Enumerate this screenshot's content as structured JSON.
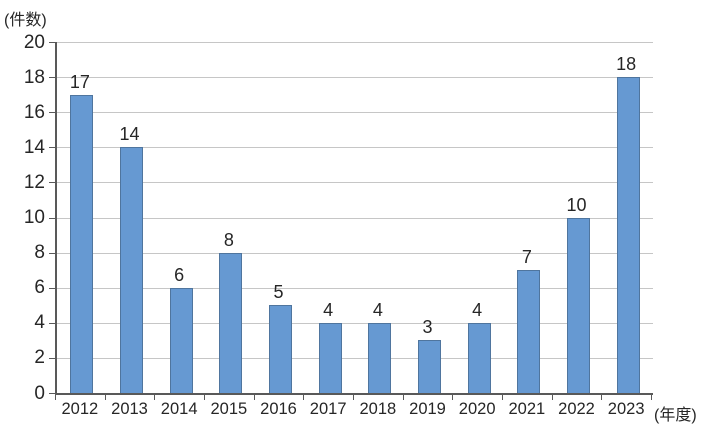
{
  "chart_data": {
    "type": "bar",
    "title": "",
    "ylabel_unit": "(件数)",
    "xlabel_unit": "(年度)",
    "categories": [
      "2012",
      "2013",
      "2014",
      "2015",
      "2016",
      "2017",
      "2018",
      "2019",
      "2020",
      "2021",
      "2022",
      "2023"
    ],
    "values": [
      17,
      14,
      6,
      8,
      5,
      4,
      4,
      3,
      4,
      7,
      10,
      18
    ],
    "ylim": [
      0,
      20
    ],
    "ytick_step": 2,
    "grid": "horizontal",
    "legend": "none",
    "colors": {
      "bar_fill": "#6699d2",
      "bar_border": "#4f759e",
      "gridline": "#c6c6c6",
      "axis": "#595959",
      "text": "#262626"
    }
  }
}
